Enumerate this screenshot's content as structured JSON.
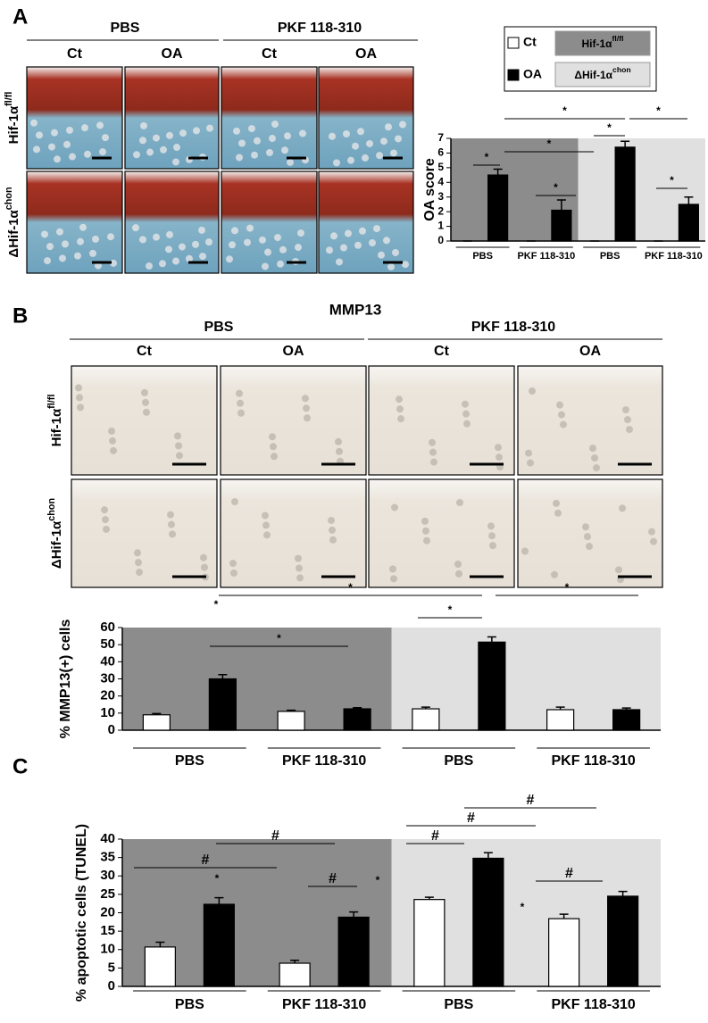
{
  "panel_a": {
    "label": "A",
    "headers": [
      "PBS",
      "PKF 118-310"
    ],
    "columns": [
      "Ct",
      "OA",
      "Ct",
      "OA"
    ],
    "rows": [
      {
        "text": "Hif-1α",
        "sup": "fl/fl"
      },
      {
        "text": "ΔHif-1α",
        "sup": "chon"
      }
    ]
  },
  "panel_b": {
    "label": "B",
    "title": "MMP13",
    "headers": [
      "PBS",
      "PKF 118-310"
    ],
    "columns": [
      "Ct",
      "OA",
      "Ct",
      "OA"
    ],
    "rows": [
      {
        "text": "Hif-1α",
        "sup": "fl/fl"
      },
      {
        "text": "ΔHif-1α",
        "sup": "chon"
      }
    ]
  },
  "panel_c": {
    "label": "C"
  },
  "chart_data": [
    {
      "type": "bar",
      "y_label": "OA score",
      "legend": true,
      "categories": [
        "PBS",
        "PKF 118-310",
        "PBS",
        "PKF 118-310"
      ],
      "shading": [
        {
          "text": "Hif-1α",
          "sup": "fl/fl",
          "color": "#8c8c8c"
        },
        {
          "text": "ΔHif-1α",
          "sup": "chon",
          "color": "#e0e0e0"
        }
      ],
      "series": [
        {
          "name": "Ct",
          "color": "#ffffff",
          "values": [
            0,
            0,
            0,
            0
          ],
          "errors": [
            0,
            0,
            0,
            0
          ]
        },
        {
          "name": "OA",
          "color": "#000000",
          "values": [
            4.5,
            2.1,
            6.4,
            2.5
          ],
          "errors": [
            0.4,
            0.7,
            0.4,
            0.5
          ]
        }
      ],
      "ylim": [
        0,
        7
      ],
      "yticks": [
        0,
        1,
        2,
        3,
        4,
        5,
        6,
        7
      ],
      "annotations": [
        "*",
        "*",
        "*",
        "*",
        "*",
        "*",
        "*"
      ]
    },
    {
      "type": "bar",
      "y_label": "% MMP13(+) cells",
      "legend": false,
      "categories": [
        "PBS",
        "PKF 118-310",
        "PBS",
        "PKF 118-310"
      ],
      "shading": [
        {
          "color": "#8c8c8c"
        },
        {
          "color": "#e0e0e0"
        }
      ],
      "series": [
        {
          "name": "Ct",
          "color": "#ffffff",
          "values": [
            9,
            11,
            12.5,
            12
          ],
          "errors": [
            0.7,
            0.7,
            1,
            1.5
          ]
        },
        {
          "name": "OA",
          "color": "#000000",
          "values": [
            30,
            12.5,
            51.5,
            12
          ],
          "errors": [
            2.5,
            0.7,
            3,
            1
          ]
        }
      ],
      "ylim": [
        0,
        60
      ],
      "yticks": [
        0,
        10,
        20,
        30,
        40,
        50,
        60
      ],
      "annotations": [
        "*",
        "*",
        "*",
        "*",
        "*"
      ]
    },
    {
      "type": "bar",
      "y_label": "% apoptotic cells (TUNEL)",
      "legend": false,
      "categories": [
        "PBS",
        "PKF 118-310",
        "PBS",
        "PKF 118-310"
      ],
      "shading": [
        {
          "color": "#8c8c8c"
        },
        {
          "color": "#e0e0e0"
        }
      ],
      "series": [
        {
          "name": "Ct",
          "color": "#ffffff",
          "values": [
            10.7,
            6.3,
            23.6,
            18.4
          ],
          "errors": [
            1.3,
            0.8,
            0.6,
            1.2
          ]
        },
        {
          "name": "OA",
          "color": "#000000",
          "values": [
            22.3,
            18.8,
            34.8,
            24.5
          ],
          "errors": [
            1.8,
            1.4,
            1.5,
            1.3
          ]
        }
      ],
      "ylim": [
        0,
        40
      ],
      "yticks": [
        0,
        5,
        10,
        15,
        20,
        25,
        30,
        35,
        40
      ],
      "annotations": [
        "*",
        "#",
        "#",
        "#",
        "*",
        "#",
        "#",
        "#",
        "*",
        "#"
      ]
    }
  ]
}
